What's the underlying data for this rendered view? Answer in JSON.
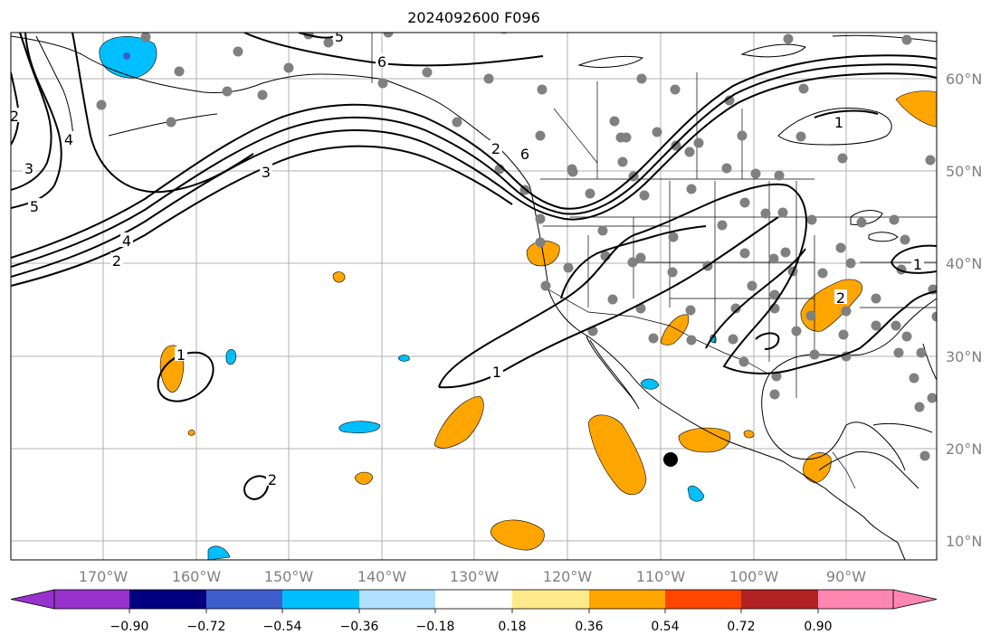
{
  "title": "2024092600 F096",
  "lon_ticks": [
    "170°W",
    "160°W",
    "150°W",
    "140°W",
    "130°W",
    "120°W",
    "110°W",
    "100°W",
    "90°W"
  ],
  "lat_ticks": [
    "60°N",
    "50°N",
    "40°N",
    "30°N",
    "20°N",
    "10°N"
  ],
  "colorbar": {
    "tick_labels": [
      "−0.90",
      "−0.72",
      "−0.54",
      "−0.36",
      "−0.18",
      "0.18",
      "0.36",
      "0.54",
      "0.72",
      "0.90"
    ],
    "colors": [
      "#9932cc",
      "#000080",
      "#3d5fcd",
      "#00bfff",
      "#b0e0ff",
      "#ffffff",
      "#ffe98a",
      "#ffa500",
      "#ff4500",
      "#b22222",
      "#ff86b0"
    ]
  },
  "contour_labels": [
    "5",
    "6",
    "2",
    "4",
    "3",
    "5",
    "4",
    "2",
    "3",
    "6",
    "1",
    "1",
    "2",
    "1",
    "1",
    "2",
    "2"
  ],
  "colors": {
    "land_line": "#000000",
    "grid": "#b0b0b0",
    "station": "#808080",
    "positive": "#ffa500",
    "negative": "#00bfff",
    "tick_text": "#808080"
  }
}
